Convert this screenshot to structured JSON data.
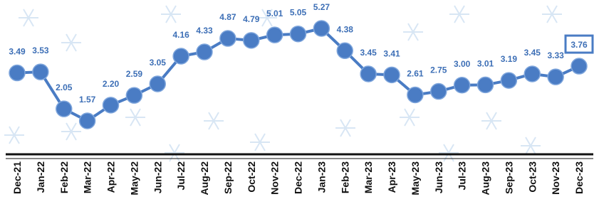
{
  "chart_data": {
    "type": "line",
    "categories": [
      "Dec-21",
      "Jan-22",
      "Feb-22",
      "Mar-22",
      "Apr-22",
      "May-22",
      "Jun-22",
      "Jul-22",
      "Aug-22",
      "Sep-22",
      "Oct-22",
      "Nov-22",
      "Dec-22",
      "Jan-23",
      "Feb-23",
      "Mar-23",
      "Apr-23",
      "May-23",
      "Jun-23",
      "Jul-23",
      "Aug-23",
      "Sep-23",
      "Oct-23",
      "Nov-23",
      "Dec-23"
    ],
    "values": [
      3.49,
      3.53,
      2.05,
      1.57,
      2.2,
      2.59,
      3.05,
      4.16,
      4.33,
      4.87,
      4.79,
      5.01,
      5.05,
      5.27,
      4.38,
      3.45,
      3.41,
      2.61,
      2.75,
      3.0,
      3.01,
      3.19,
      3.45,
      3.33,
      3.76
    ],
    "value_labels": [
      "3.49",
      "3.53",
      "2.05",
      "1.57",
      "2.20",
      "2.59",
      "3.05",
      "4.16",
      "4.33",
      "4.87",
      "4.79",
      "5.01",
      "5.05",
      "5.27",
      "4.38",
      "3.45",
      "3.41",
      "2.61",
      "2.75",
      "3.00",
      "3.01",
      "3.19",
      "3.45",
      "3.33",
      "3.76"
    ],
    "color": "#4a7cc4"
  }
}
